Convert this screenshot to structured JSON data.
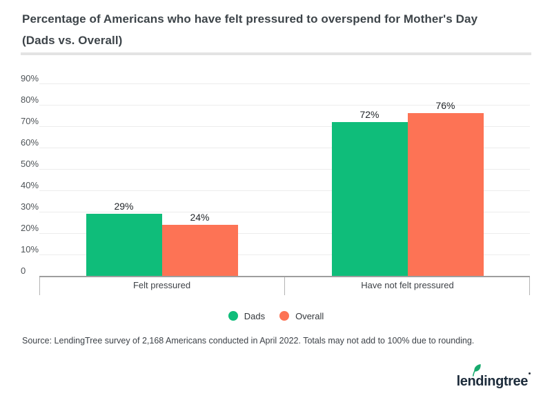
{
  "header": {
    "title_line1": "Percentage of Americans who have felt pressured to overspend for Mother's Day",
    "title_line2": "(Dads vs. Overall)"
  },
  "chart_data": {
    "type": "bar",
    "title": "Percentage of Americans who have felt pressured to overspend for Mother's Day (Dads vs. Overall)",
    "categories": [
      "Felt pressured",
      "Have not felt pressured"
    ],
    "series": [
      {
        "name": "Dads",
        "color": "#0fbd7a",
        "values": [
          29,
          72
        ],
        "data_labels": [
          "29%",
          "72%"
        ]
      },
      {
        "name": "Overall",
        "color": "#fd7355",
        "values": [
          24,
          76
        ],
        "data_labels": [
          "24%",
          "76%"
        ]
      }
    ],
    "y_axis": {
      "tick_labels": [
        "90%",
        "80%",
        "70%",
        "60%",
        "50%",
        "40%",
        "30%",
        "20%",
        "10%",
        "0"
      ],
      "tick_values": [
        90,
        80,
        70,
        60,
        50,
        40,
        30,
        20,
        10,
        0
      ],
      "range": [
        0,
        90
      ]
    },
    "grid": "horizontal",
    "legend_position": "bottom",
    "legend": [
      "Dads",
      "Overall"
    ]
  },
  "footer": {
    "source": "Source: LendingTree survey of 2,168 Americans conducted in April 2022. Totals may not add to 100% due to rounding.",
    "logo_text": "lendingtree"
  },
  "colors": {
    "dads_green": "#0fbd7a",
    "overall_orange": "#fd7355",
    "logo_navy": "#1d2c3b",
    "leaf_green": "#17aa6d"
  }
}
